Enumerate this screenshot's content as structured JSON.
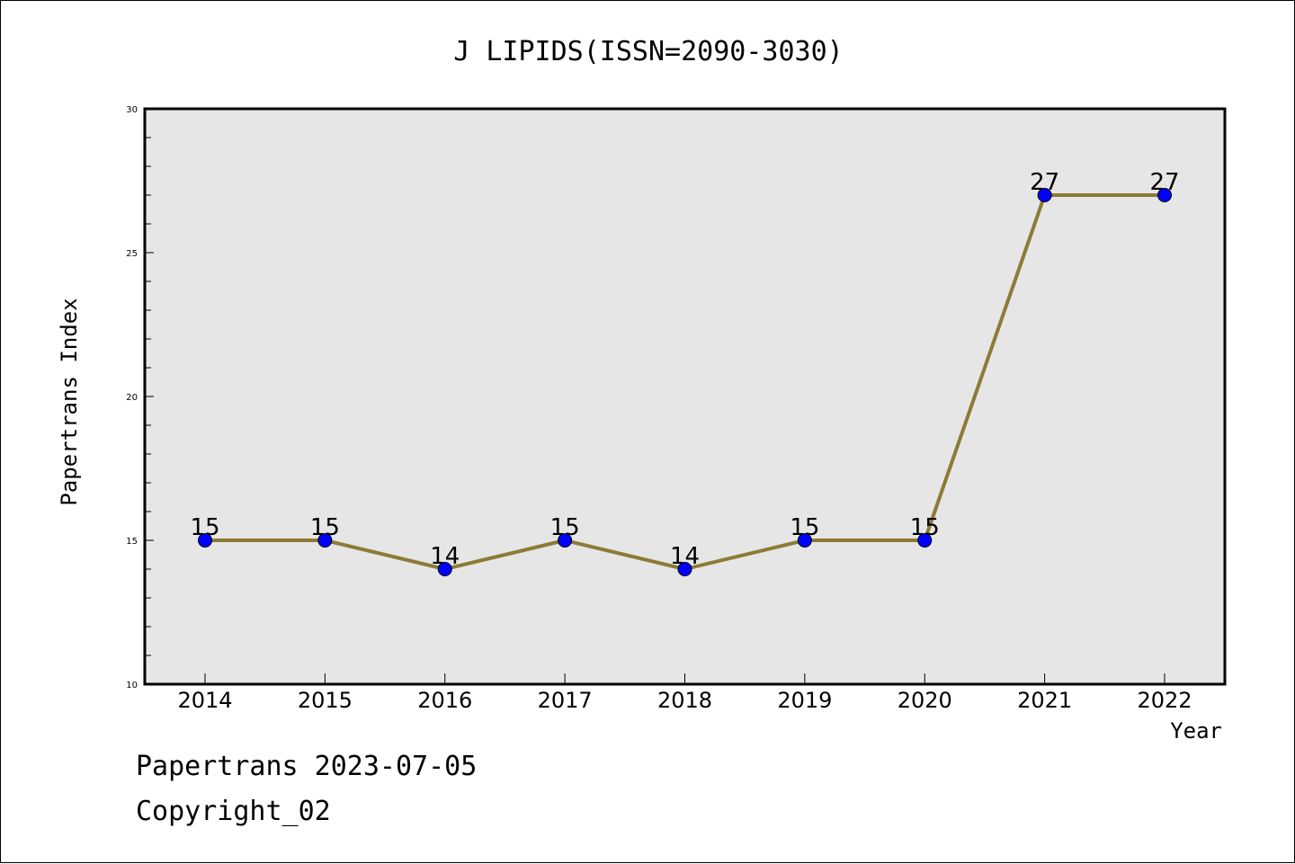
{
  "chart_data": {
    "type": "line",
    "title": "J LIPIDS(ISSN=2090-3030)",
    "xlabel": "Year",
    "ylabel": "Papertrans Index",
    "x": [
      "2014",
      "2015",
      "2016",
      "2017",
      "2018",
      "2019",
      "2020",
      "2021",
      "2022"
    ],
    "series": [
      {
        "values": [
          15,
          15,
          14,
          15,
          14,
          15,
          15,
          27,
          27
        ],
        "data_labels": [
          "15",
          "15",
          "14",
          "15",
          "14",
          "15",
          "15",
          "27",
          "27"
        ]
      }
    ],
    "ylim": [
      10,
      30
    ],
    "yticks": [
      "10",
      "15",
      "20",
      "25",
      "30"
    ],
    "grid": false,
    "legend": "none",
    "colors": {
      "line": "#8c7b35",
      "marker": "#0000ff",
      "plot_background": "#e6e6e6"
    }
  },
  "footer": {
    "date_line": "Papertrans 2023-07-05",
    "copyright_line": "Copyright_02"
  }
}
